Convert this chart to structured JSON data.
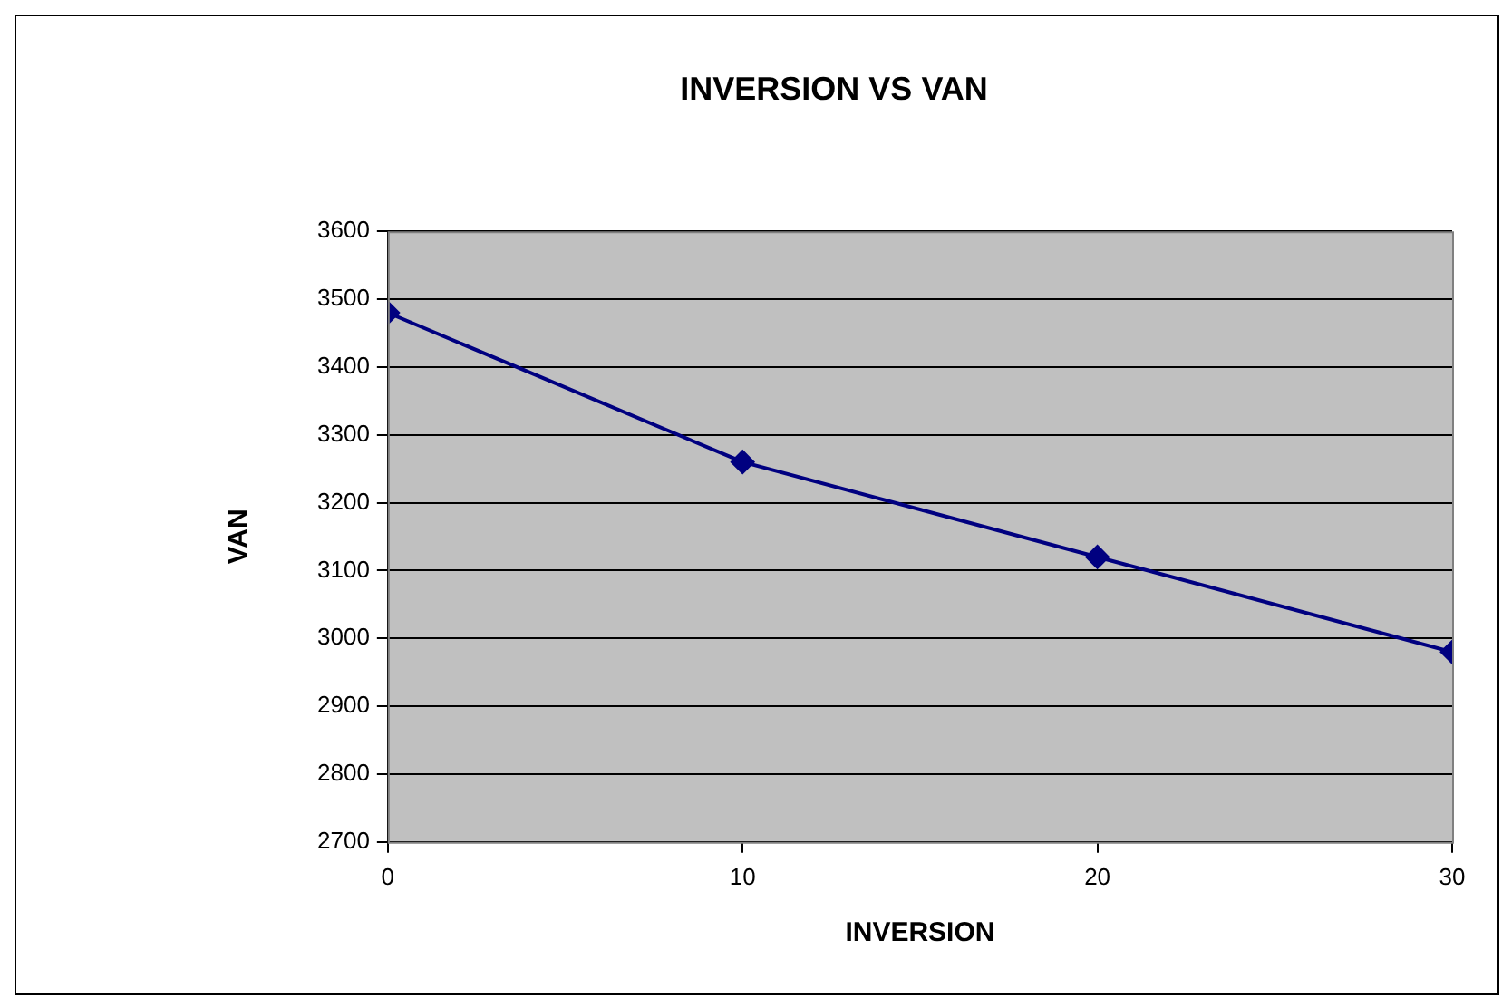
{
  "chart_data": {
    "type": "line",
    "title": "INVERSION VS VAN",
    "xlabel": "INVERSION",
    "ylabel": "VAN",
    "x": [
      0,
      10,
      20,
      30
    ],
    "series": [
      {
        "color": "#000080",
        "values": [
          3480,
          3260,
          3120,
          2980
        ]
      }
    ],
    "xlim": [
      0,
      30
    ],
    "xticks": [
      0,
      10,
      20,
      30
    ],
    "ylim": [
      2700,
      3600
    ],
    "yticks": [
      2700,
      2800,
      2900,
      3000,
      3100,
      3200,
      3300,
      3400,
      3500,
      3600
    ],
    "grid": "y",
    "legend": false,
    "marker": "diamond",
    "line_style": "solid"
  }
}
